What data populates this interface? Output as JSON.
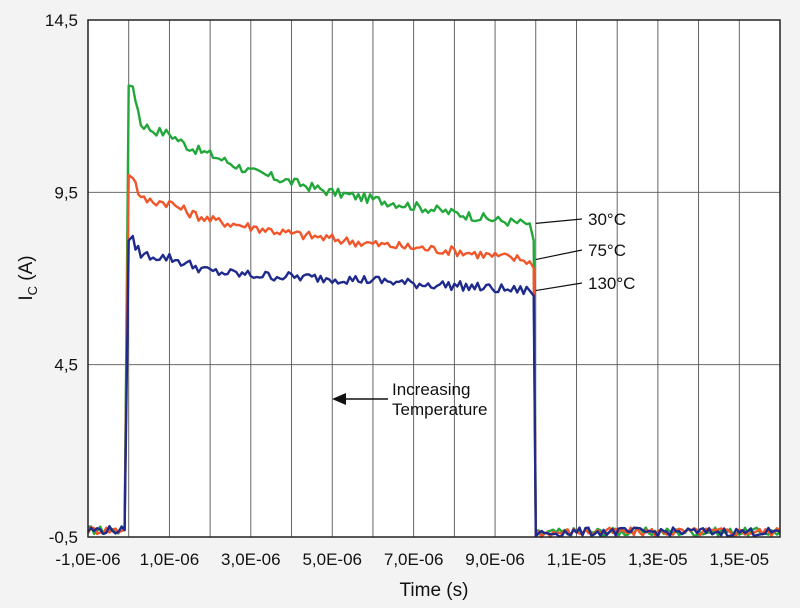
{
  "chart_data": {
    "type": "line",
    "title": "",
    "xlabel": "Time (s)",
    "ylabel_main": "I",
    "ylabel_sub": "C",
    "ylabel_unit": " (A)",
    "xlim": [
      -1e-06,
      1.6e-05
    ],
    "ylim": [
      -0.5,
      14.5
    ],
    "grid": true,
    "x_ticks": [
      {
        "value": -1e-06,
        "label": "-1,0E-06"
      },
      {
        "value": 1e-06,
        "label": "1,0E-06"
      },
      {
        "value": 3e-06,
        "label": "3,0E-06"
      },
      {
        "value": 5e-06,
        "label": "5,0E-06"
      },
      {
        "value": 7e-06,
        "label": "7,0E-06"
      },
      {
        "value": 9e-06,
        "label": "9,0E-06"
      },
      {
        "value": 1.1e-05,
        "label": "1,1E-05"
      },
      {
        "value": 1.3e-05,
        "label": "1,3E-05"
      },
      {
        "value": 1.5e-05,
        "label": "1,5E-05"
      }
    ],
    "y_ticks": [
      {
        "value": -0.5,
        "label": "-0,5"
      },
      {
        "value": 4.5,
        "label": "4,5"
      },
      {
        "value": 9.5,
        "label": "9,5"
      },
      {
        "value": 14.5,
        "label": "14,5"
      }
    ],
    "series": [
      {
        "name": "30°C",
        "color": "#22a83a",
        "x": [
          -1e-06,
          -1e-07,
          0.0,
          1e-07,
          3e-07,
          6e-07,
          1e-06,
          1.5e-06,
          2e-06,
          3e-06,
          4e-06,
          5e-06,
          6e-06,
          7e-06,
          8e-06,
          9e-06,
          9.7e-06,
          9.85e-06,
          9.95e-06,
          1e-05,
          1.1e-05,
          1.3e-05,
          1.5e-05,
          1.6e-05
        ],
        "y": [
          -0.3,
          -0.3,
          12.6,
          12.6,
          11.5,
          11.3,
          11.2,
          10.8,
          10.6,
          10.1,
          9.8,
          9.5,
          9.3,
          9.1,
          8.9,
          8.7,
          8.6,
          8.6,
          8.1,
          -0.4,
          -0.35,
          -0.35,
          -0.35,
          -0.35
        ]
      },
      {
        "name": "75°C",
        "color": "#f0562a",
        "x": [
          -1e-06,
          -1e-07,
          0.0,
          1e-07,
          3e-07,
          6e-07,
          1e-06,
          1.5e-06,
          2e-06,
          3e-06,
          4e-06,
          5e-06,
          6e-06,
          7e-06,
          8e-06,
          9e-06,
          9.7e-06,
          9.85e-06,
          9.95e-06,
          1e-05,
          1.1e-05,
          1.3e-05,
          1.5e-05,
          1.6e-05
        ],
        "y": [
          -0.3,
          -0.3,
          10.0,
          10.0,
          9.3,
          9.25,
          9.2,
          8.9,
          8.7,
          8.5,
          8.3,
          8.15,
          8.0,
          7.9,
          7.8,
          7.65,
          7.55,
          7.5,
          7.3,
          -0.4,
          -0.35,
          -0.35,
          -0.35,
          -0.35
        ]
      },
      {
        "name": "130°C",
        "color": "#1e2a8c",
        "x": [
          -1e-06,
          -1e-07,
          0.0,
          1e-07,
          3e-07,
          6e-07,
          1e-06,
          1.5e-06,
          2e-06,
          3e-06,
          4e-06,
          5e-06,
          6e-06,
          7e-06,
          8e-06,
          9e-06,
          9.7e-06,
          9.85e-06,
          9.95e-06,
          1e-05,
          1.1e-05,
          1.3e-05,
          1.5e-05,
          1.6e-05
        ],
        "y": [
          -0.3,
          -0.3,
          8.1,
          8.1,
          7.7,
          7.65,
          7.6,
          7.4,
          7.2,
          7.1,
          7.05,
          7.0,
          6.95,
          6.85,
          6.8,
          6.7,
          6.65,
          6.65,
          6.5,
          -0.4,
          -0.35,
          -0.35,
          -0.35,
          -0.35
        ]
      }
    ],
    "annotations": {
      "arrow_line1": "Increasing",
      "arrow_line2": "Temperature"
    }
  }
}
